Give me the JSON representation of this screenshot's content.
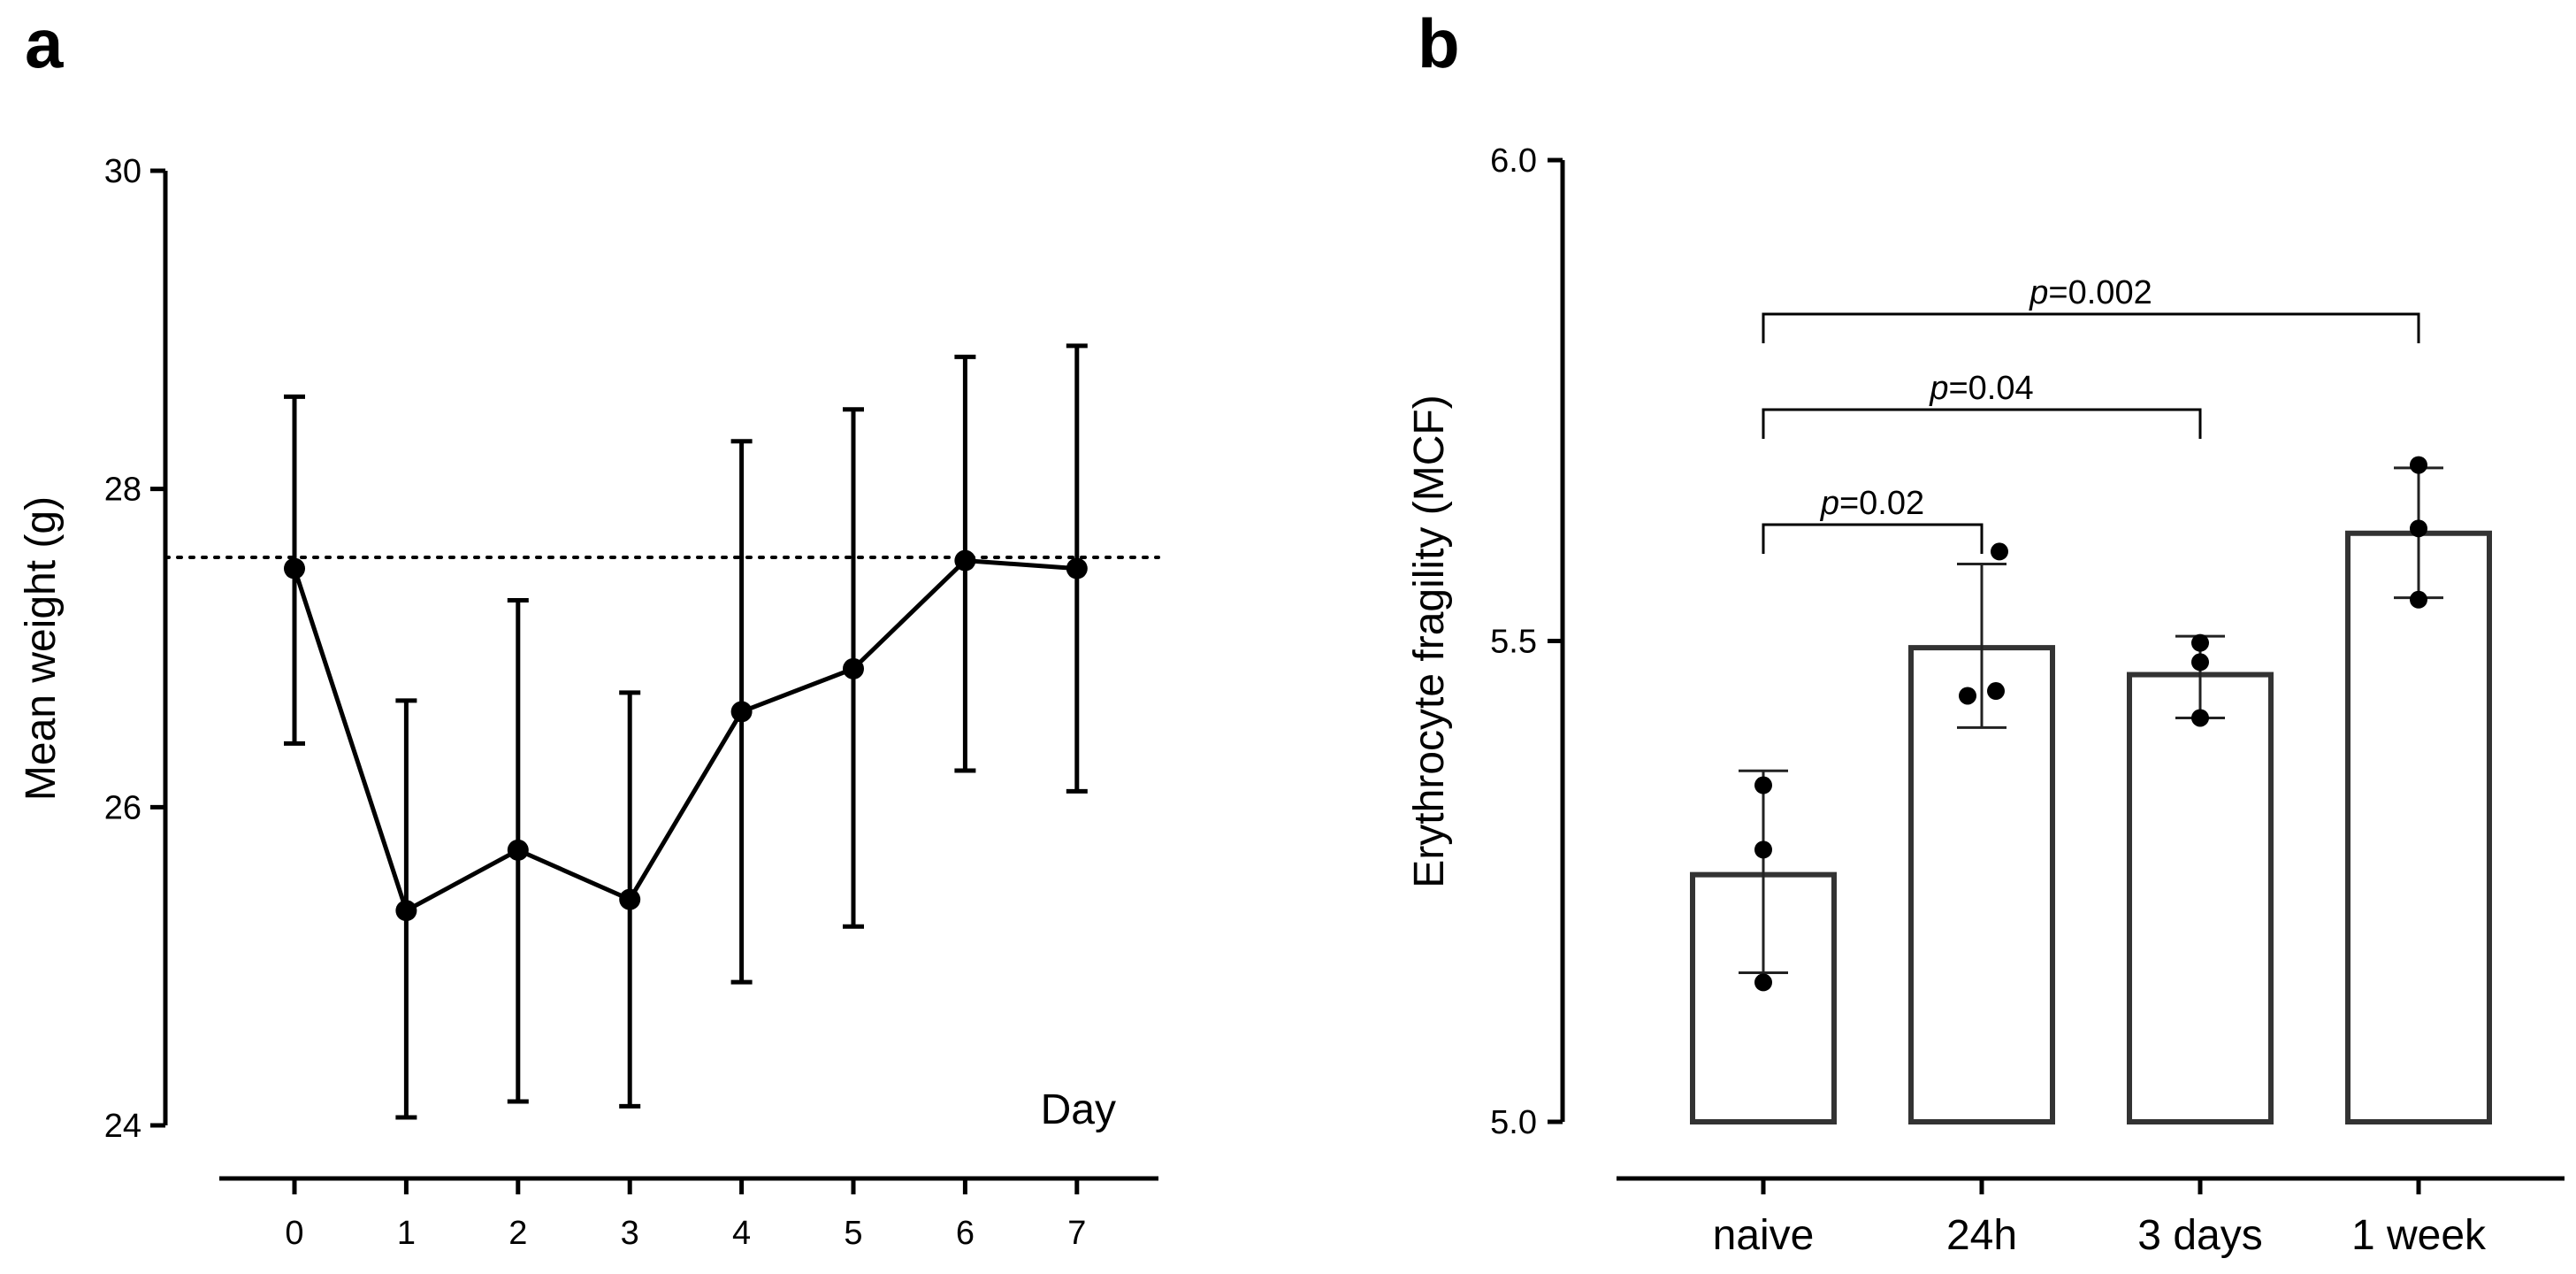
{
  "chart_data": [
    {
      "panel_label": "a",
      "type": "line",
      "ylabel": "Mean  weight (g)",
      "xlabel": "Day",
      "ylim": [
        24,
        30
      ],
      "yticks": [
        "24",
        "26",
        "28",
        "30"
      ],
      "categories": [
        "0",
        "1",
        "2",
        "3",
        "4",
        "5",
        "6",
        "7"
      ],
      "series": [
        {
          "name": "Mean weight",
          "values": [
            27.5,
            25.35,
            25.73,
            25.42,
            26.6,
            26.87,
            27.55,
            27.5
          ],
          "error_low": [
            26.4,
            24.05,
            24.15,
            24.12,
            24.9,
            25.25,
            26.23,
            26.1
          ],
          "error_high": [
            28.58,
            26.67,
            27.3,
            26.72,
            28.3,
            28.5,
            28.83,
            28.9
          ]
        }
      ],
      "reference_line": {
        "y": 27.57,
        "style": "dotted"
      }
    },
    {
      "panel_label": "b",
      "type": "bar",
      "ylabel": "Erythrocyte fragility (MCF)",
      "ylim": [
        5.0,
        6.0
      ],
      "yticks": [
        "5.0",
        "5.5",
        "6.0"
      ],
      "categories": [
        "naive",
        "24h",
        "3 days",
        "1 week"
      ],
      "values": [
        5.257,
        5.493,
        5.465,
        5.612
      ],
      "error_low": [
        5.155,
        5.41,
        5.42,
        5.545
      ],
      "error_high": [
        5.365,
        5.58,
        5.505,
        5.68
      ],
      "points": [
        [
          5.35,
          5.283,
          5.145
        ],
        [
          5.593,
          5.443,
          5.448
        ],
        [
          5.498,
          5.478,
          5.42
        ],
        [
          5.683,
          5.617,
          5.543
        ]
      ],
      "comparisons": [
        {
          "from": "naive",
          "to": "24h",
          "prefix": "p",
          "label": "=0.02"
        },
        {
          "from": "naive",
          "to": "3 days",
          "prefix": "p",
          "label": "=0.04"
        },
        {
          "from": "naive",
          "to": "1 week",
          "prefix": "p",
          "label": "=0.002"
        }
      ]
    }
  ]
}
